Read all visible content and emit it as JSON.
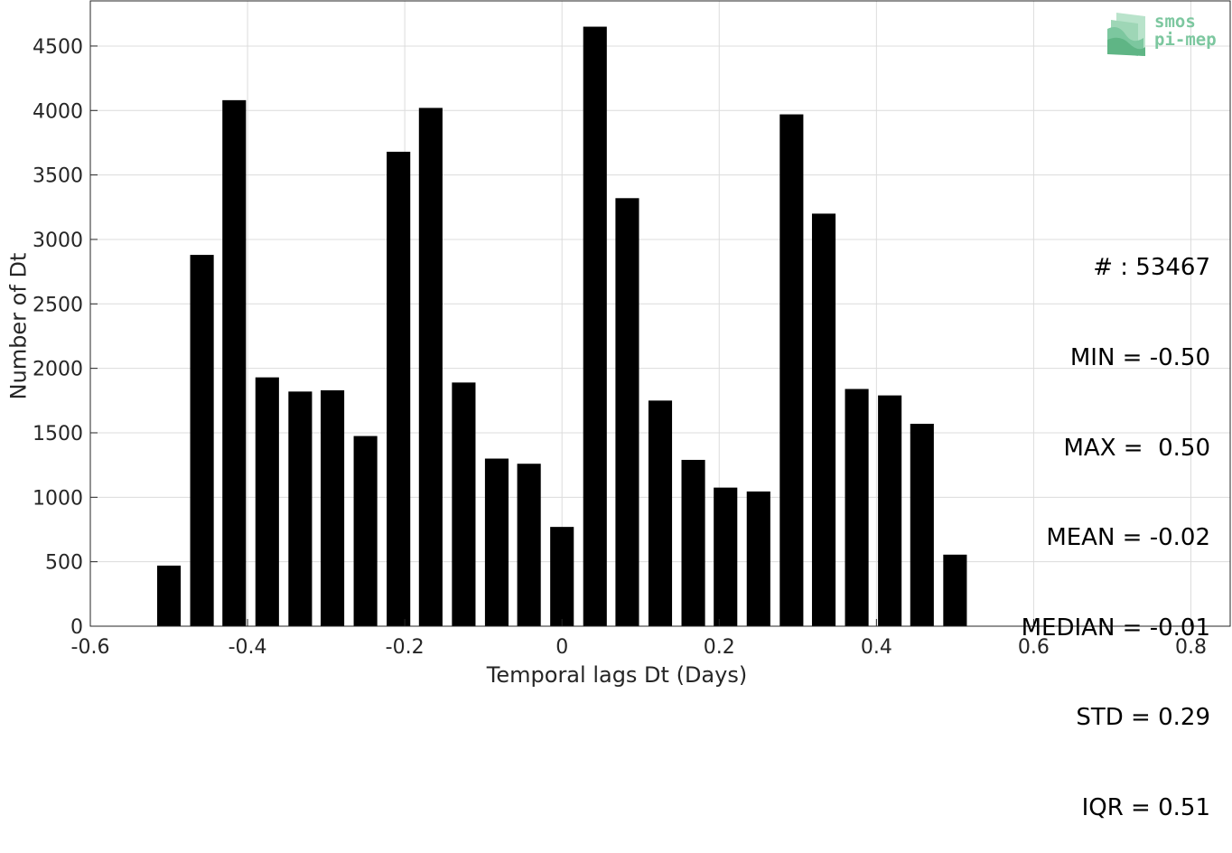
{
  "chart_data": {
    "type": "bar",
    "title": "",
    "xlabel": "Temporal lags Dt (Days)",
    "ylabel": "Number of Dt",
    "xlim": [
      -0.6,
      0.85
    ],
    "ylim": [
      0,
      4850
    ],
    "xticks": [
      -0.6,
      -0.4,
      -0.2,
      0,
      0.2,
      0.4,
      0.6,
      0.8
    ],
    "xtick_labels": [
      "-0.6",
      "-0.4",
      "-0.2",
      "0",
      "0.2",
      "0.4",
      "0.6",
      "0.8"
    ],
    "yticks": [
      0,
      500,
      1000,
      1500,
      2000,
      2500,
      3000,
      3500,
      4000,
      4500
    ],
    "ytick_labels": [
      "0",
      "500",
      "1000",
      "1500",
      "2000",
      "2500",
      "3000",
      "3500",
      "4000",
      "4500"
    ],
    "grid": true,
    "bar_color": "#000000",
    "bar_width": 0.03,
    "x": [
      -0.5,
      -0.458,
      -0.417,
      -0.375,
      -0.333,
      -0.292,
      -0.25,
      -0.208,
      -0.167,
      -0.125,
      -0.083,
      -0.042,
      0.0,
      0.042,
      0.083,
      0.125,
      0.167,
      0.208,
      0.25,
      0.292,
      0.333,
      0.375,
      0.417,
      0.458,
      0.5
    ],
    "values": [
      470,
      2880,
      4080,
      1930,
      1820,
      1830,
      1475,
      3680,
      4020,
      1890,
      1300,
      1260,
      770,
      4650,
      3320,
      1750,
      1290,
      1075,
      1045,
      3970,
      3200,
      1840,
      1790,
      1570,
      555
    ]
  },
  "stats": {
    "lines": [
      "# : 53467",
      "MIN = -0.50",
      "MAX =  0.50",
      "MEAN = -0.02",
      "MEDIAN = -0.01",
      "STD = 0.29",
      "IQR = 0.51"
    ]
  },
  "logo": {
    "text_line1": "smos",
    "text_line2": "pi-mep",
    "color": "#7cc79f"
  }
}
